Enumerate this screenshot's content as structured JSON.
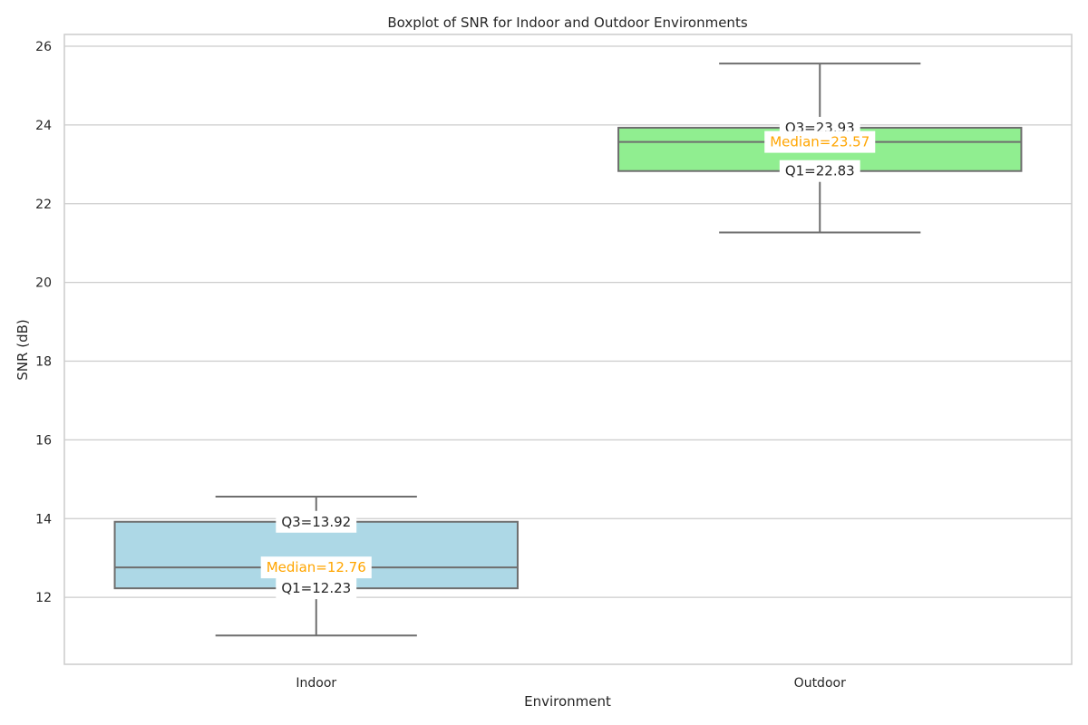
{
  "chart_data": {
    "type": "box",
    "title": "Boxplot of SNR for Indoor and Outdoor Environments",
    "xlabel": "Environment",
    "ylabel": "SNR (dB)",
    "ylim": [
      10.3,
      26.3
    ],
    "yticks": [
      12,
      14,
      16,
      18,
      20,
      22,
      24,
      26
    ],
    "grid": true,
    "categories": [
      "Indoor",
      "Outdoor"
    ],
    "boxes": [
      {
        "category": "Indoor",
        "color": "#add8e6",
        "whisker_low": 11.03,
        "q1": 12.23,
        "median": 12.76,
        "q3": 13.92,
        "whisker_high": 14.56,
        "labels": {
          "q3": "Q3=13.92",
          "median": "Median=12.76",
          "q1": "Q1=12.23"
        }
      },
      {
        "category": "Outdoor",
        "color": "#90ee90",
        "whisker_low": 21.27,
        "q1": 22.83,
        "median": 23.57,
        "q3": 23.93,
        "whisker_high": 25.56,
        "labels": {
          "q3": "Q3=23.93",
          "median": "Median=23.57",
          "q1": "Q1=22.83"
        }
      }
    ],
    "annotation_colors": {
      "quartile": "#262626",
      "median": "#ffa500"
    }
  }
}
